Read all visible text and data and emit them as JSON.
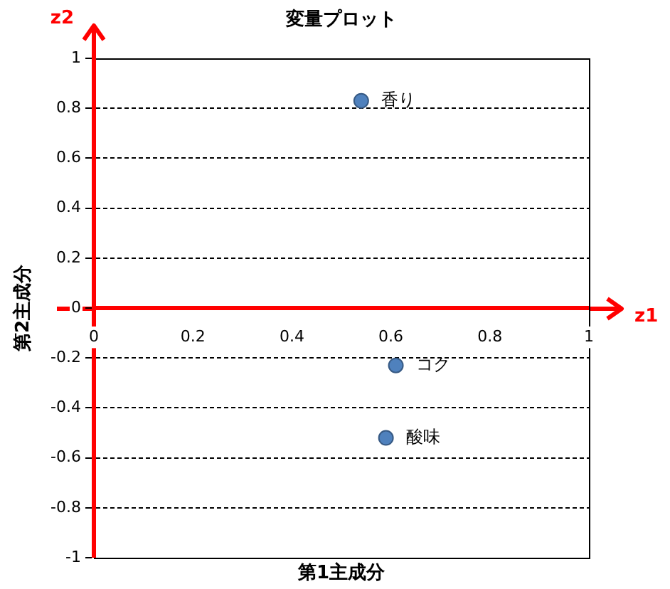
{
  "chart_data": {
    "type": "scatter",
    "title": "変量プロット",
    "xlabel": "第1主成分",
    "ylabel": "第2主成分",
    "xlim": [
      0,
      1
    ],
    "xticks": [
      0,
      0.2,
      0.4,
      0.6,
      0.8,
      1
    ],
    "ylim": [
      -1,
      1
    ],
    "yticks": [
      -1,
      -0.8,
      -0.6,
      -0.4,
      -0.2,
      0,
      0.2,
      0.4,
      0.6,
      0.8,
      1
    ],
    "grid": "y",
    "marker": "circle",
    "series": [
      {
        "name": "香り",
        "color": "#4f81bd",
        "x": [
          0.54
        ],
        "values": [
          0.83
        ]
      },
      {
        "name": "コク",
        "color": "#4f81bd",
        "x": [
          0.61
        ],
        "values": [
          -0.23
        ]
      },
      {
        "name": "酸味",
        "color": "#4f81bd",
        "x": [
          0.59
        ],
        "values": [
          -0.52
        ]
      }
    ],
    "annotations": [
      "z1",
      "z2"
    ]
  }
}
